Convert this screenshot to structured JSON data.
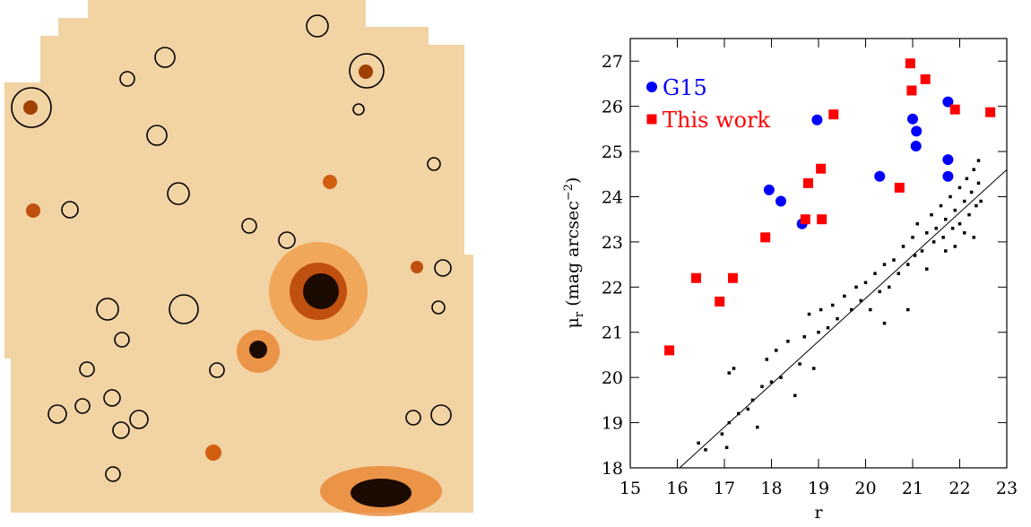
{
  "chart_data": {
    "type": "scatter",
    "x_label": "r",
    "y_label": {
      "symbol": "μ",
      "sub": "r",
      "text": " (mag arcsec",
      "sup": "−2",
      "close": ")"
    },
    "xlim": [
      15,
      23
    ],
    "ylim": [
      18,
      27.5
    ],
    "xticks": [
      15,
      16,
      17,
      18,
      19,
      20,
      21,
      22,
      23
    ],
    "yticks": [
      18,
      19,
      20,
      21,
      22,
      23,
      24,
      25,
      26,
      27
    ],
    "series": [
      {
        "name": "G15",
        "color": "#0000ff",
        "marker": "circle",
        "x": [
          17.95,
          18.2,
          18.65,
          18.97,
          20.3,
          21.0,
          21.08,
          21.07,
          21.75,
          21.75,
          21.75
        ],
        "values": [
          24.15,
          23.9,
          23.4,
          25.7,
          24.45,
          25.72,
          25.45,
          25.12,
          26.1,
          24.82,
          24.45
        ]
      },
      {
        "name": "This work",
        "color": "#ff0000",
        "marker": "square",
        "x": [
          15.83,
          16.4,
          16.9,
          17.18,
          17.87,
          18.72,
          18.78,
          19.05,
          19.07,
          19.32,
          20.72,
          20.95,
          20.98,
          21.27,
          21.9,
          22.65
        ],
        "values": [
          20.6,
          22.2,
          21.68,
          22.2,
          23.1,
          23.5,
          24.3,
          24.62,
          23.5,
          25.82,
          24.2,
          26.95,
          26.35,
          26.6,
          25.93,
          25.87
        ]
      },
      {
        "color": "#000000",
        "marker": "dot",
        "x": [
          16.45,
          16.6,
          16.95,
          17.05,
          17.1,
          17.3,
          17.1,
          17.2,
          17.5,
          17.6,
          17.7,
          17.8,
          17.9,
          18.0,
          18.1,
          18.2,
          18.35,
          18.5,
          18.6,
          18.7,
          18.8,
          18.9,
          19.0,
          19.05,
          19.2,
          19.3,
          19.4,
          19.55,
          19.7,
          19.8,
          19.9,
          20.0,
          20.1,
          20.2,
          20.3,
          20.4,
          20.5,
          20.6,
          20.7,
          20.8,
          20.9,
          21.0,
          21.05,
          21.1,
          21.2,
          21.3,
          21.4,
          21.45,
          21.5,
          21.6,
          21.65,
          21.7,
          21.8,
          21.85,
          21.9,
          22.0,
          22.0,
          22.1,
          22.15,
          22.2,
          22.25,
          22.3,
          22.35,
          22.4,
          22.4,
          22.45,
          22.3,
          22.1,
          21.9,
          21.7,
          21.3,
          20.9,
          20.4
        ],
        "values": [
          18.55,
          18.4,
          18.75,
          18.45,
          19.0,
          19.2,
          20.1,
          20.2,
          19.3,
          19.5,
          18.9,
          19.8,
          20.4,
          19.9,
          20.6,
          20.0,
          20.8,
          19.6,
          20.3,
          20.9,
          21.4,
          20.2,
          21.0,
          21.5,
          21.1,
          21.6,
          21.3,
          21.8,
          21.5,
          22.0,
          21.7,
          22.1,
          21.5,
          22.3,
          21.9,
          22.5,
          22.0,
          22.6,
          22.3,
          22.9,
          22.5,
          23.1,
          22.7,
          23.4,
          22.8,
          23.2,
          23.6,
          23.0,
          23.3,
          23.8,
          23.1,
          23.5,
          24.0,
          23.3,
          23.7,
          24.2,
          23.4,
          23.9,
          24.4,
          23.6,
          24.1,
          24.6,
          23.8,
          24.3,
          24.8,
          23.9,
          23.1,
          23.2,
          22.9,
          22.8,
          22.4,
          21.5,
          21.2
        ]
      }
    ],
    "fit_line": {
      "x": [
        16.05,
        23
      ],
      "values": [
        18,
        24.6
      ]
    }
  }
}
